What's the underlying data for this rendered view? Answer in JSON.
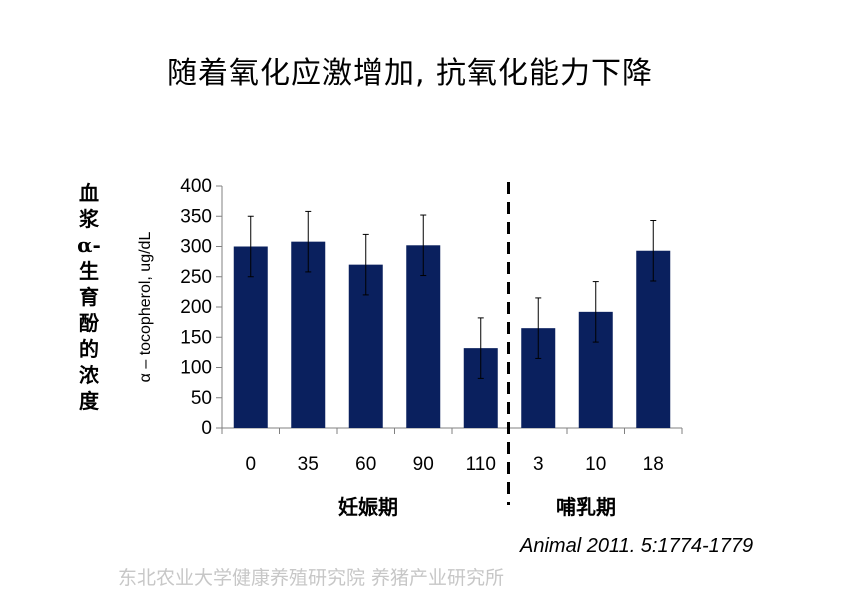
{
  "title": "随着氧化应激增加, 抗氧化能力下降",
  "side_label": [
    "血",
    "浆",
    "α-",
    "生",
    "育",
    "酚",
    "的",
    "浓",
    "度"
  ],
  "citation": "Animal  2011. 5:1774-1779",
  "watermark": "东北农业大学健康养殖研究院 养猪产业研究所",
  "colors": {
    "bar": "#0a205e",
    "axis": "#808080",
    "text": "#000000"
  },
  "chart_data": {
    "type": "bar",
    "ylabel": "α – tocopherol, ug/dL",
    "ylim": [
      0,
      400
    ],
    "yticks": [
      0,
      50,
      100,
      150,
      200,
      250,
      300,
      350,
      400
    ],
    "categories": [
      "0",
      "35",
      "60",
      "90",
      "110",
      "3",
      "10",
      "18"
    ],
    "values": [
      300,
      308,
      270,
      302,
      132,
      165,
      192,
      293
    ],
    "errors": [
      50,
      50,
      50,
      50,
      50,
      50,
      50,
      50
    ],
    "groups": [
      {
        "label": "妊娠期",
        "indices": [
          0,
          1,
          2,
          3,
          4
        ]
      },
      {
        "label": "哺乳期",
        "indices": [
          5,
          6,
          7
        ]
      }
    ],
    "divider_after_index": 4,
    "grid": false,
    "legend": "none"
  }
}
